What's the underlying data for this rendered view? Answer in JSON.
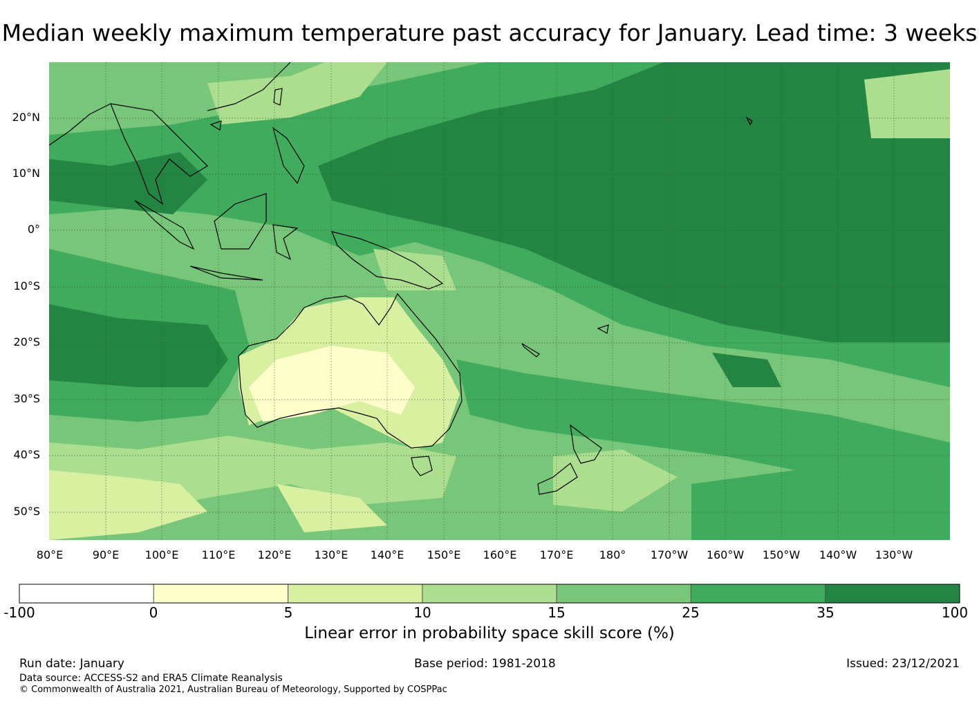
{
  "title": "Median weekly maximum temperature past accuracy for January. Lead time: 3 weeks",
  "map": {
    "lat_labels": [
      "20°N",
      "10°N",
      "0°",
      "10°S",
      "20°S",
      "30°S",
      "40°S",
      "50°S"
    ],
    "lon_labels": [
      "80°E",
      "90°E",
      "100°E",
      "110°E",
      "120°E",
      "130°E",
      "140°E",
      "150°E",
      "160°E",
      "170°E",
      "180°",
      "170°W",
      "160°W",
      "150°W",
      "140°W",
      "130°W"
    ]
  },
  "colorbar": {
    "ticks": [
      "-100",
      "0",
      "5",
      "10",
      "15",
      "25",
      "35",
      "100"
    ],
    "colors": [
      "#ffffff",
      "#ffffcc",
      "#d9f0a3",
      "#addd8e",
      "#78c679",
      "#41ab5d",
      "#238443"
    ],
    "label": "Linear error in probability space skill score (%)"
  },
  "footer": {
    "run_date": "Run date: January",
    "base_period": "Base period: 1981-2018",
    "issued": "Issued: 23/12/2021",
    "data_source": "Data source: ACCESS-S2 and ERA5 Climate Reanalysis",
    "copyright": "© Commonwealth of Australia 2021, Australian Bureau of Meteorology, Supported by COSPPac"
  }
}
